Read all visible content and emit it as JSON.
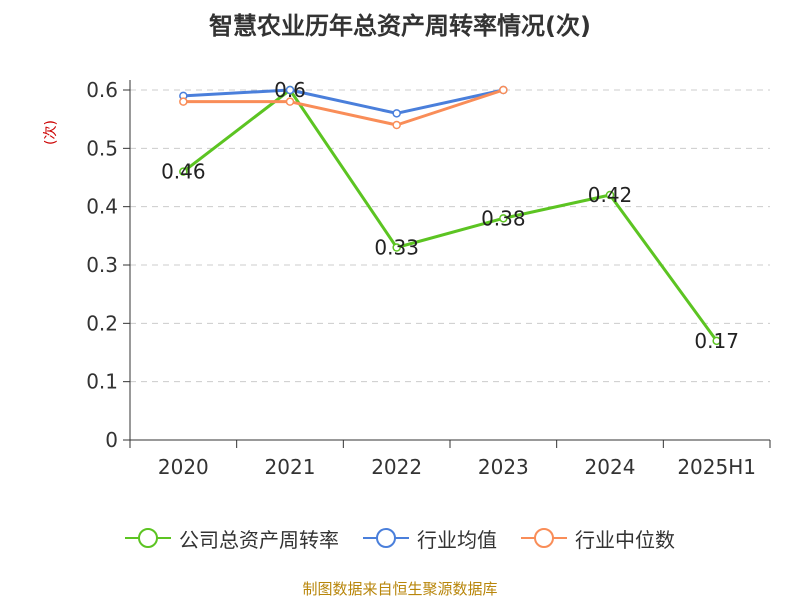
{
  "chart_data": {
    "type": "line",
    "title": "智慧农业历年总资产周转率情况(次)",
    "ylabel": "(次)",
    "xlabel": "",
    "categories": [
      "2020",
      "2021",
      "2022",
      "2023",
      "2024",
      "2025H1"
    ],
    "ylim": [
      0,
      0.6
    ],
    "yticks": [
      0,
      0.1,
      0.2,
      0.3,
      0.4,
      0.5,
      0.6
    ],
    "ytick_labels": [
      "0",
      "0.1",
      "0.2",
      "0.3",
      "0.4",
      "0.5",
      "0.6"
    ],
    "grid": true,
    "legend_position": "bottom",
    "series": [
      {
        "name": "公司总资产周转率",
        "color": "#5cc422",
        "values": [
          0.46,
          0.6,
          0.33,
          0.38,
          0.42,
          0.17
        ],
        "data_labels": [
          "0.46",
          "0.6",
          "0.33",
          "0.38",
          "0.42",
          "0.17"
        ]
      },
      {
        "name": "行业均值",
        "color": "#4a7fdb",
        "values": [
          0.59,
          0.6,
          0.56,
          0.6,
          null,
          null
        ]
      },
      {
        "name": "行业中位数",
        "color": "#f98d58",
        "values": [
          0.58,
          0.58,
          0.54,
          0.6,
          null,
          null
        ]
      }
    ]
  },
  "source": "制图数据来自恒生聚源数据库"
}
